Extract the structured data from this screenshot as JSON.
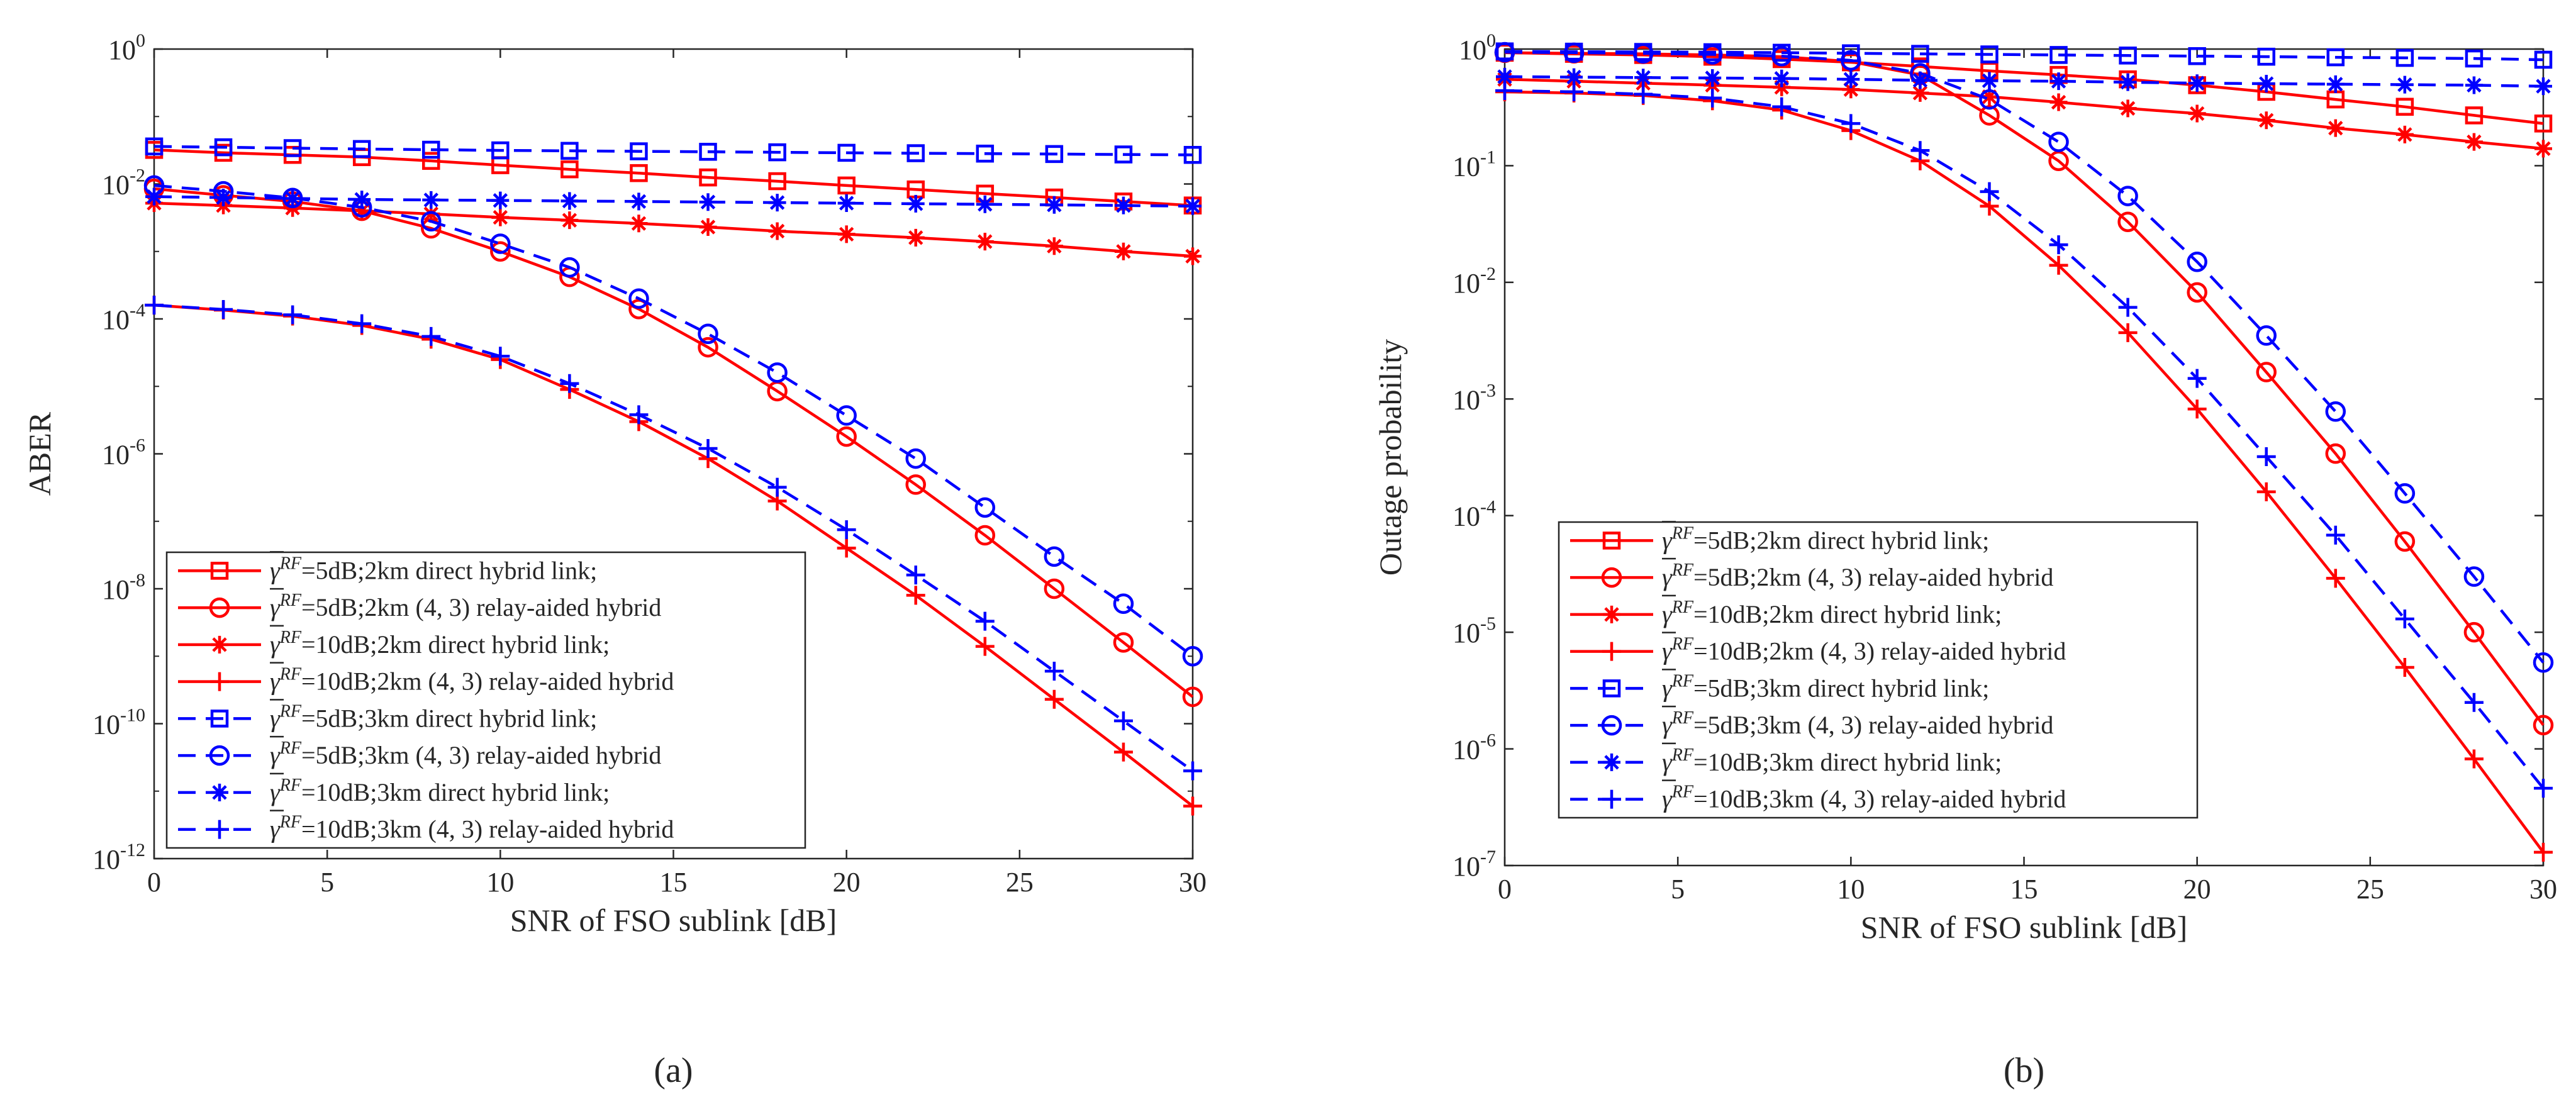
{
  "chart_data": [
    {
      "type": "line",
      "panel_label": "(a)",
      "xlabel": "SNR of FSO sublink [dB]",
      "ylabel": "ABER",
      "xlim": [
        0,
        30
      ],
      "ylim": [
        1e-12,
        1
      ],
      "yscale": "log",
      "x_ticks": [
        0,
        5,
        10,
        15,
        20,
        25,
        30
      ],
      "y_ticks": [
        1e-12,
        1e-10,
        1e-08,
        1e-06,
        0.0001,
        0.01,
        1
      ],
      "y_tick_labels": [
        {
          "base": "10",
          "exp": "-12"
        },
        {
          "base": "10",
          "exp": "-10"
        },
        {
          "base": "10",
          "exp": "-8"
        },
        {
          "base": "10",
          "exp": "-6"
        },
        {
          "base": "10",
          "exp": "-4"
        },
        {
          "base": "10",
          "exp": "-2"
        },
        {
          "base": "10",
          "exp": "0"
        }
      ],
      "grid": false,
      "legend_position": "bottom-left",
      "x": [
        0,
        2,
        4,
        6,
        8,
        10,
        12,
        14,
        16,
        18,
        20,
        22,
        24,
        26,
        28,
        30
      ],
      "series": [
        {
          "name_snr": "=5dB;2km direct hybrid link;",
          "color": "#ff0000",
          "dash": "solid",
          "marker": "square",
          "values": [
            0.032,
            0.029,
            0.027,
            0.025,
            0.022,
            0.019,
            0.0165,
            0.0145,
            0.0125,
            0.011,
            0.0095,
            0.0083,
            0.0072,
            0.0063,
            0.0055,
            0.0048
          ]
        },
        {
          "name_snr": "=5dB;2km (4, 3) relay-aided hybrid",
          "color": "#ff0000",
          "dash": "solid",
          "marker": "circle",
          "values": [
            0.0085,
            0.0068,
            0.0055,
            0.004,
            0.0022,
            0.001,
            0.00042,
            0.00014,
            3.8e-05,
            8.5e-06,
            1.8e-06,
            3.5e-07,
            6.2e-08,
            1e-08,
            1.6e-09,
            2.5e-10
          ]
        },
        {
          "name_snr": "=10dB;2km direct hybrid link;",
          "color": "#ff0000",
          "dash": "solid",
          "marker": "asterisk",
          "values": [
            0.0052,
            0.0048,
            0.0044,
            0.004,
            0.0036,
            0.0032,
            0.0029,
            0.0026,
            0.0023,
            0.002,
            0.0018,
            0.0016,
            0.0014,
            0.0012,
            0.001,
            0.00085
          ]
        },
        {
          "name_snr": "=10dB;2km (4, 3) relay-aided hybrid",
          "color": "#ff0000",
          "dash": "solid",
          "marker": "plus",
          "values": [
            0.00016,
            0.000135,
            0.00011,
            8e-05,
            5e-05,
            2.5e-05,
            9e-06,
            3e-06,
            8.5e-07,
            2e-07,
            4e-08,
            8e-09,
            1.4e-09,
            2.3e-10,
            3.8e-11,
            6e-12
          ]
        },
        {
          "name_snr": "=5dB;3km direct hybrid link;",
          "color": "#0000ff",
          "dash": "dashed",
          "marker": "square",
          "values": [
            0.036,
            0.035,
            0.034,
            0.033,
            0.0322,
            0.0315,
            0.031,
            0.0305,
            0.03,
            0.0295,
            0.029,
            0.0286,
            0.0282,
            0.0278,
            0.0274,
            0.027
          ]
        },
        {
          "name_snr": "=5dB;3km (4, 3) relay-aided hybrid",
          "color": "#0000ff",
          "dash": "dashed",
          "marker": "circle",
          "values": [
            0.0095,
            0.0078,
            0.0062,
            0.0045,
            0.0028,
            0.0013,
            0.00058,
            0.0002,
            6e-05,
            1.6e-05,
            3.7e-06,
            8.5e-07,
            1.6e-07,
            3e-08,
            6e-09,
            1e-09
          ]
        },
        {
          "name_snr": "=10dB;3km direct hybrid link;",
          "color": "#0000ff",
          "dash": "dashed",
          "marker": "asterisk",
          "values": [
            0.0065,
            0.0063,
            0.0061,
            0.0059,
            0.0058,
            0.0057,
            0.0056,
            0.0055,
            0.0054,
            0.0053,
            0.0052,
            0.0051,
            0.005,
            0.0049,
            0.0048,
            0.0047
          ]
        },
        {
          "name_snr": "=10dB;3km (4, 3) relay-aided hybrid",
          "color": "#0000ff",
          "dash": "dashed",
          "marker": "plus",
          "values": [
            0.00016,
            0.000138,
            0.000115,
            8.5e-05,
            5.5e-05,
            2.8e-05,
            1.1e-05,
            3.8e-06,
            1.2e-06,
            3.2e-07,
            7.5e-08,
            1.6e-08,
            3.3e-09,
            6e-10,
            1.1e-10,
            2e-11
          ]
        }
      ]
    },
    {
      "type": "line",
      "panel_label": "(b)",
      "xlabel": "SNR of FSO sublink [dB]",
      "ylabel": "Outage probability",
      "xlim": [
        0,
        30
      ],
      "ylim": [
        1e-07,
        1
      ],
      "yscale": "log",
      "x_ticks": [
        0,
        5,
        10,
        15,
        20,
        25,
        30
      ],
      "y_ticks": [
        1e-07,
        1e-06,
        1e-05,
        0.0001,
        0.001,
        0.01,
        0.1,
        1
      ],
      "y_tick_labels": [
        {
          "base": "10",
          "exp": "-7"
        },
        {
          "base": "10",
          "exp": "-6"
        },
        {
          "base": "10",
          "exp": "-5"
        },
        {
          "base": "10",
          "exp": "-4"
        },
        {
          "base": "10",
          "exp": "-3"
        },
        {
          "base": "10",
          "exp": "-2"
        },
        {
          "base": "10",
          "exp": "-1"
        },
        {
          "base": "10",
          "exp": "0"
        }
      ],
      "grid": false,
      "legend_position": "bottom-left",
      "x": [
        0,
        2,
        4,
        6,
        8,
        10,
        12,
        14,
        16,
        18,
        20,
        22,
        24,
        26,
        28,
        30
      ],
      "series": [
        {
          "name_snr": "=5dB;2km direct hybrid link;",
          "color": "#ff0000",
          "dash": "solid",
          "marker": "square",
          "values": [
            0.93,
            0.91,
            0.89,
            0.86,
            0.82,
            0.77,
            0.71,
            0.65,
            0.6,
            0.55,
            0.49,
            0.43,
            0.37,
            0.32,
            0.27,
            0.23
          ]
        },
        {
          "name_snr": "=5dB;2km (4, 3) relay-aided hybrid",
          "color": "#ff0000",
          "dash": "solid",
          "marker": "circle",
          "values": [
            0.93,
            0.92,
            0.91,
            0.89,
            0.86,
            0.78,
            0.6,
            0.27,
            0.11,
            0.033,
            0.0082,
            0.0017,
            0.00034,
            6e-05,
            1e-05,
            1.6e-06
          ]
        },
        {
          "name_snr": "=10dB;2km direct hybrid link;",
          "color": "#ff0000",
          "dash": "solid",
          "marker": "asterisk",
          "values": [
            0.55,
            0.53,
            0.51,
            0.49,
            0.47,
            0.45,
            0.42,
            0.39,
            0.35,
            0.31,
            0.28,
            0.245,
            0.21,
            0.185,
            0.16,
            0.14
          ]
        },
        {
          "name_snr": "=10dB;2km (4, 3) relay-aided hybrid",
          "color": "#ff0000",
          "dash": "solid",
          "marker": "plus",
          "values": [
            0.43,
            0.42,
            0.4,
            0.36,
            0.3,
            0.2,
            0.11,
            0.045,
            0.014,
            0.0037,
            0.00082,
            0.00016,
            2.9e-05,
            5e-06,
            8.2e-07,
            1.3e-07
          ]
        },
        {
          "name_snr": "=5dB;3km direct hybrid link;",
          "color": "#0000ff",
          "dash": "dashed",
          "marker": "square",
          "values": [
            0.955,
            0.95,
            0.945,
            0.94,
            0.93,
            0.92,
            0.91,
            0.9,
            0.89,
            0.88,
            0.87,
            0.86,
            0.85,
            0.84,
            0.83,
            0.81
          ]
        },
        {
          "name_snr": "=5dB;3km (4, 3) relay-aided hybrid",
          "color": "#0000ff",
          "dash": "dashed",
          "marker": "circle",
          "values": [
            0.94,
            0.93,
            0.92,
            0.9,
            0.87,
            0.8,
            0.62,
            0.37,
            0.16,
            0.055,
            0.015,
            0.0035,
            0.00078,
            0.000155,
            3e-05,
            5.5e-06
          ]
        },
        {
          "name_snr": "=10dB;3km direct hybrid link;",
          "color": "#0000ff",
          "dash": "dashed",
          "marker": "asterisk",
          "values": [
            0.58,
            0.575,
            0.57,
            0.565,
            0.56,
            0.55,
            0.54,
            0.535,
            0.53,
            0.52,
            0.51,
            0.505,
            0.5,
            0.495,
            0.49,
            0.48
          ]
        },
        {
          "name_snr": "=10dB;3km (4, 3) relay-aided hybrid",
          "color": "#0000ff",
          "dash": "dashed",
          "marker": "plus",
          "values": [
            0.44,
            0.43,
            0.41,
            0.38,
            0.32,
            0.23,
            0.135,
            0.06,
            0.021,
            0.0061,
            0.0015,
            0.00032,
            6.8e-05,
            1.3e-05,
            2.5e-06,
            4.6e-07
          ]
        }
      ]
    }
  ],
  "legend_symbol": {
    "gamma": "γ",
    "sup": "RF"
  }
}
